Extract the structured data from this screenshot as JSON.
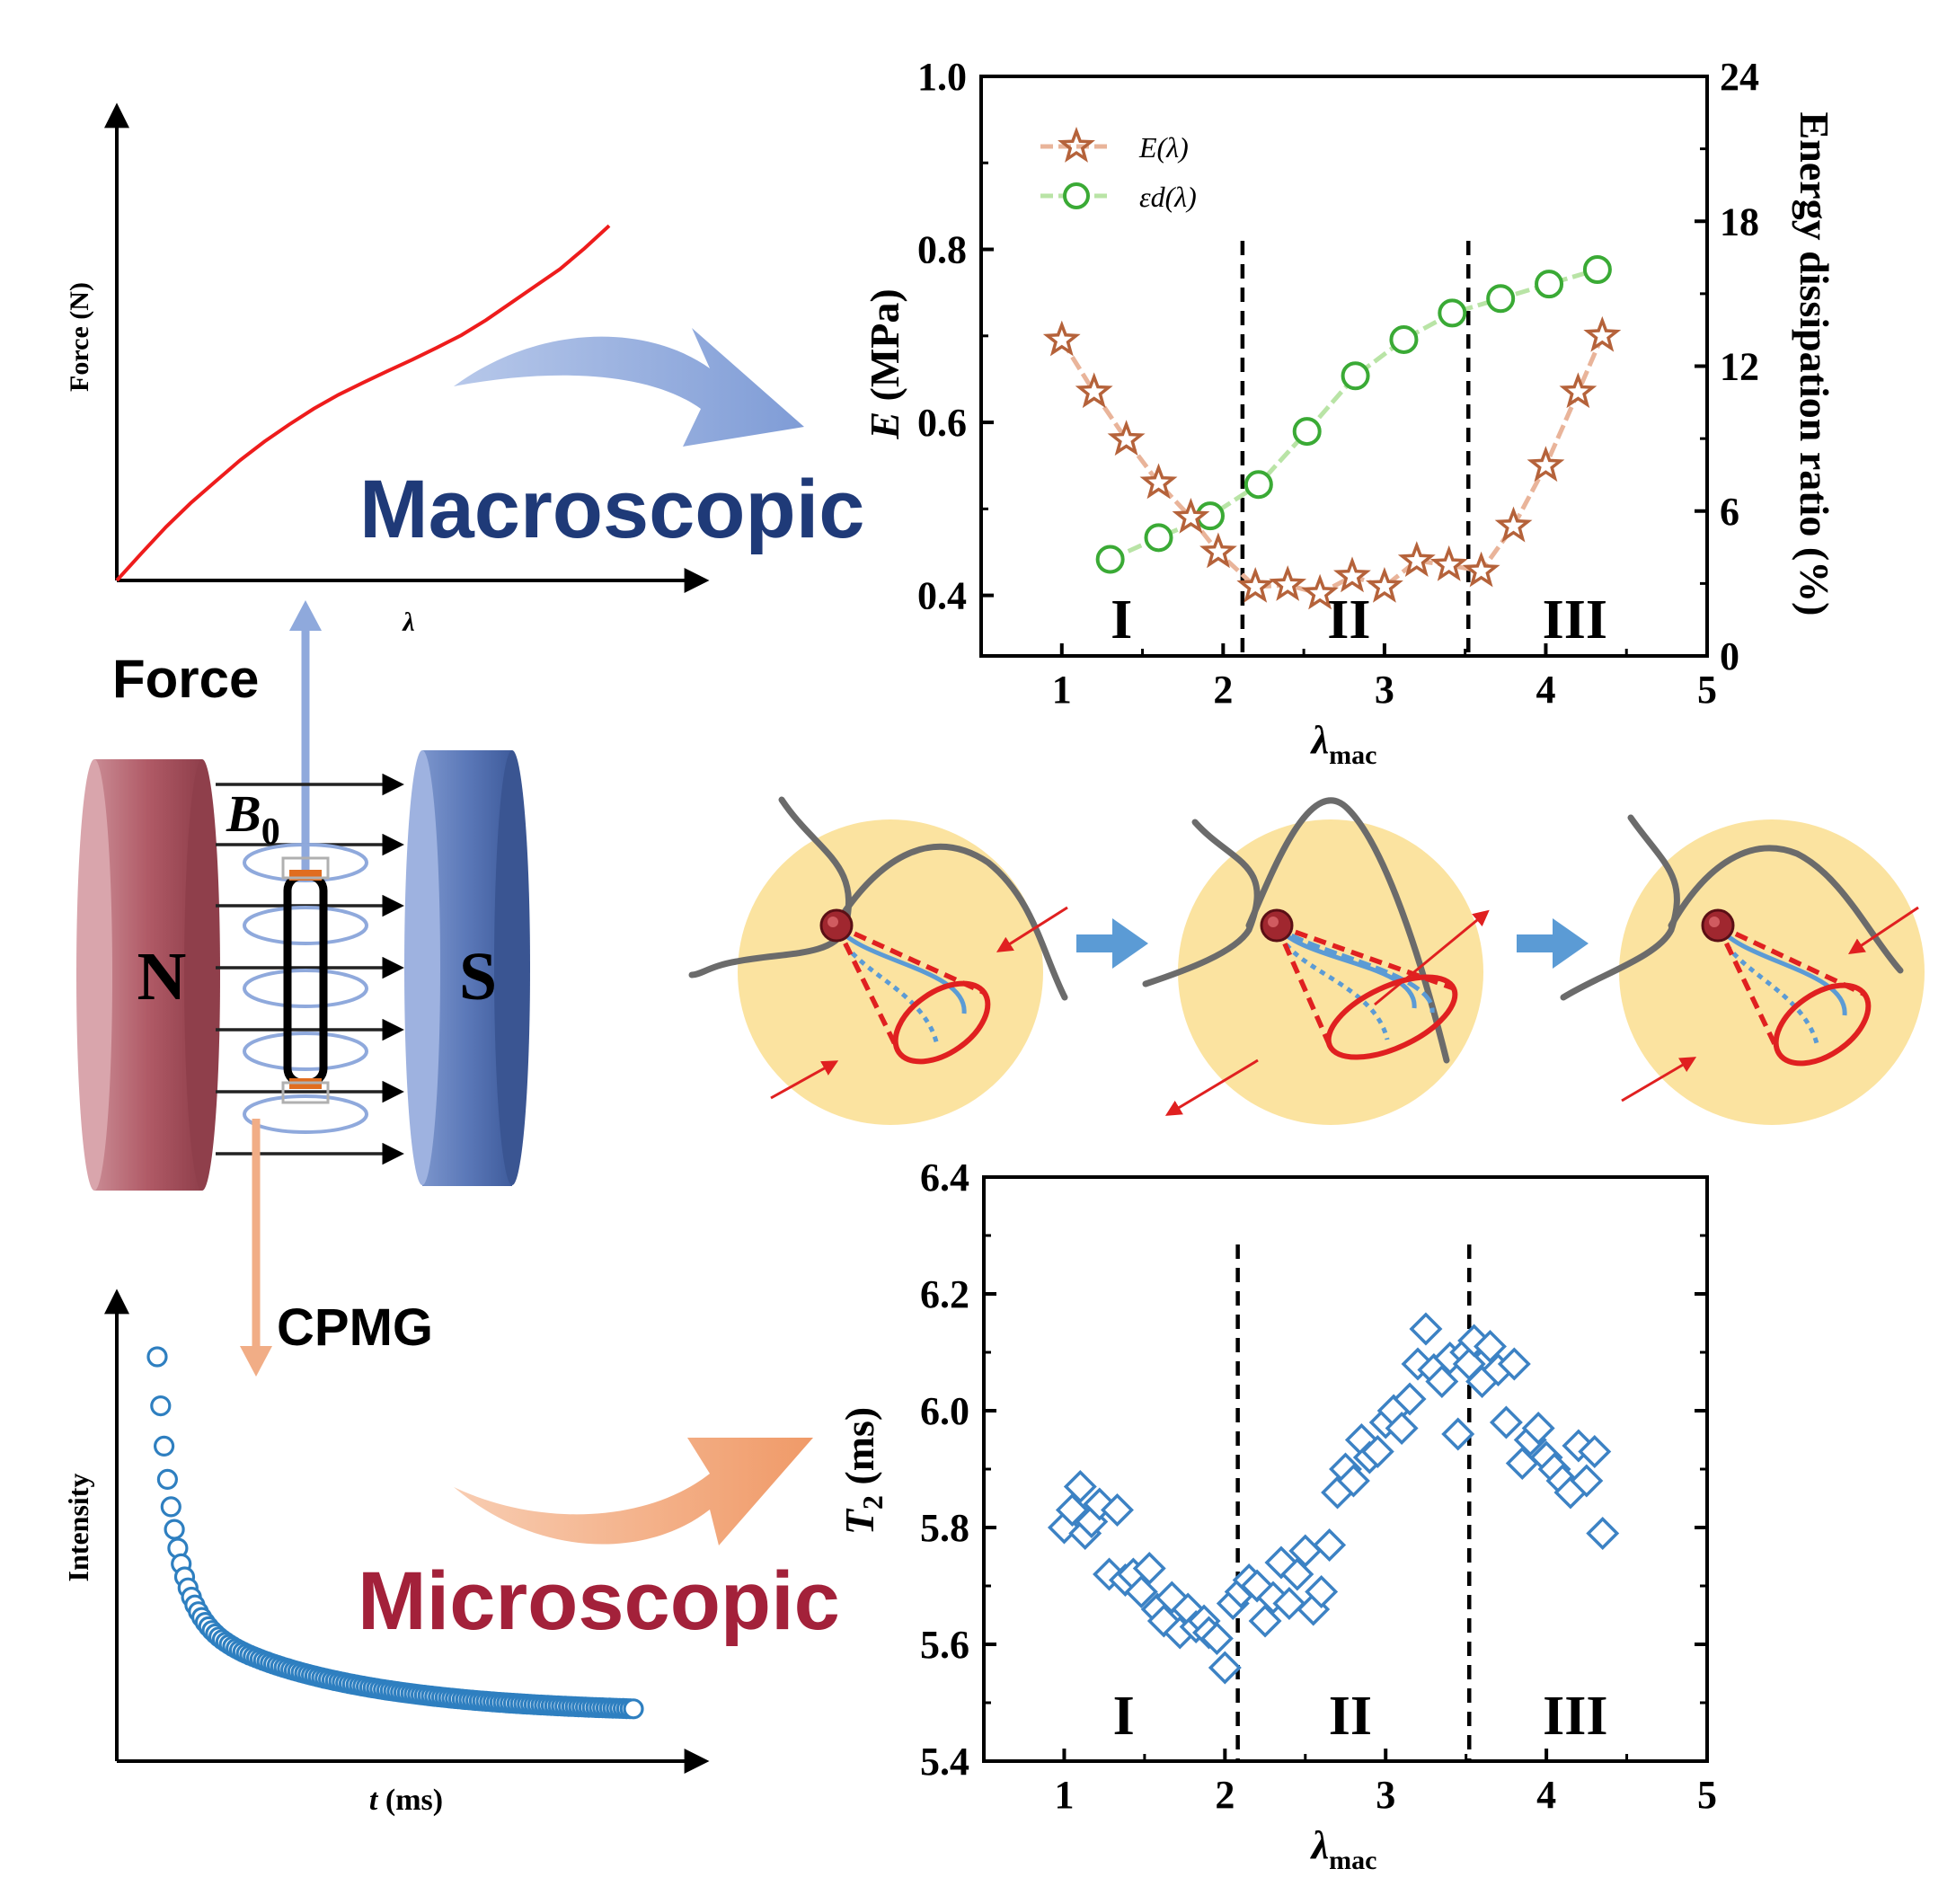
{
  "labels": {
    "macroscopic": "Macroscopic",
    "microscopic": "Microscopic",
    "force": "Force",
    "cpmg": "CPMG",
    "b0": "B",
    "b0_sub": "0",
    "magnet_n": "N",
    "magnet_s": "S"
  },
  "colors": {
    "macro_text": "#1f3a78",
    "micro_text": "#a3213a",
    "force_arrow": "#8fa9dc",
    "cpmg_arrow": "#f1ad86",
    "magnet_n": "#b05a66",
    "magnet_s": "#5b78b8",
    "circle_fill": "#fbe3a0",
    "red": "#e02020",
    "blue_line": "#5b9bd5",
    "chain": "#6b6b6b",
    "star": "#b5623a",
    "star_line": "#e9b49a",
    "circle_green": "#3aaa35",
    "green_line": "#b9e4a6",
    "diamond": "#3c82c4",
    "decay": "#2e7fc0"
  },
  "chart_data": [
    {
      "id": "force_curve",
      "type": "line",
      "xlabel": "λ",
      "ylabel": "Force (N)",
      "series": [
        {
          "x": [
            0,
            0.05,
            0.1,
            0.15,
            0.2,
            0.25,
            0.3,
            0.35,
            0.4,
            0.45,
            0.5,
            0.55,
            0.6,
            0.65,
            0.7,
            0.75,
            0.8,
            0.85,
            0.9,
            0.95,
            1.0
          ],
          "y": [
            0,
            0.072,
            0.142,
            0.205,
            0.262,
            0.318,
            0.368,
            0.413,
            0.455,
            0.492,
            0.524,
            0.555,
            0.585,
            0.617,
            0.65,
            0.69,
            0.735,
            0.78,
            0.825,
            0.88,
            0.94
          ]
        }
      ]
    },
    {
      "id": "modulus_chart",
      "type": "line",
      "xlabel": "λ",
      "xlabel_sub": "mac",
      "ylabel": "E (MPa)",
      "y2label": "Energy dissipation ratio (%)",
      "xlim": [
        0.5,
        5
      ],
      "ylim": [
        0.33,
        1.0
      ],
      "y2lim": [
        0,
        24
      ],
      "xticks": [
        "1",
        "2",
        "3",
        "4",
        "5"
      ],
      "yticks": [
        "0.4",
        "0.6",
        "0.8",
        "1.0"
      ],
      "y2ticks": [
        "0",
        "6",
        "12",
        "18",
        "24"
      ],
      "legend_position": "top-left",
      "region_labels": [
        "I",
        "II",
        "III"
      ],
      "region_label_x": [
        1.37,
        2.78,
        4.18
      ],
      "dividers": [
        2.12,
        3.52
      ],
      "series": [
        {
          "name": "E(λ)",
          "axis": "left",
          "marker": "star",
          "x": [
            1.0,
            1.2,
            1.4,
            1.6,
            1.8,
            1.97,
            2.2,
            2.4,
            2.6,
            2.8,
            3.0,
            3.2,
            3.4,
            3.6,
            3.8,
            4.0,
            4.2,
            4.35
          ],
          "y": [
            0.695,
            0.635,
            0.58,
            0.53,
            0.49,
            0.45,
            0.41,
            0.412,
            0.402,
            0.422,
            0.41,
            0.44,
            0.435,
            0.428,
            0.48,
            0.55,
            0.635,
            0.7
          ]
        },
        {
          "name": "εd(λ)",
          "axis": "right",
          "marker": "circle",
          "x": [
            1.3,
            1.6,
            1.92,
            2.22,
            2.52,
            2.82,
            3.12,
            3.42,
            3.72,
            4.02,
            4.32
          ],
          "y": [
            4.0,
            4.9,
            5.8,
            7.1,
            9.3,
            11.6,
            13.1,
            14.2,
            14.8,
            15.4,
            16.0
          ]
        }
      ]
    },
    {
      "id": "t2_chart",
      "type": "scatter",
      "xlabel": "λ",
      "xlabel_sub": "mac",
      "ylabel": "T2 (ms)",
      "xlim": [
        0.5,
        5
      ],
      "ylim": [
        5.4,
        6.4
      ],
      "xticks": [
        "1",
        "2",
        "3",
        "4",
        "5"
      ],
      "yticks": [
        "5.4",
        "5.6",
        "5.8",
        "6.0",
        "6.2",
        "6.4"
      ],
      "region_labels": [
        "I",
        "II",
        "III"
      ],
      "region_label_x": [
        1.37,
        2.78,
        4.18
      ],
      "dividers": [
        2.08,
        3.52
      ],
      "series": [
        {
          "name": "T2",
          "marker": "diamond",
          "x": [
            1.0,
            1.05,
            1.1,
            1.13,
            1.17,
            1.22,
            1.28,
            1.33,
            1.38,
            1.43,
            1.48,
            1.53,
            1.58,
            1.62,
            1.67,
            1.72,
            1.77,
            1.82,
            1.87,
            1.9,
            1.95,
            2.0,
            2.05,
            2.1,
            2.15,
            2.2,
            2.25,
            2.3,
            2.35,
            2.4,
            2.45,
            2.5,
            2.55,
            2.6,
            2.65,
            2.7,
            2.75,
            2.8,
            2.85,
            2.9,
            2.95,
            3.0,
            3.05,
            3.1,
            3.15,
            3.2,
            3.25,
            3.3,
            3.35,
            3.4,
            3.45,
            3.5,
            3.52,
            3.55,
            3.6,
            3.65,
            3.7,
            3.75,
            3.8,
            3.85,
            3.9,
            3.95,
            4.0,
            4.05,
            4.1,
            4.15,
            4.2,
            4.25,
            4.3,
            4.35
          ],
          "y": [
            5.8,
            5.83,
            5.87,
            5.79,
            5.81,
            5.84,
            5.72,
            5.83,
            5.71,
            5.72,
            5.69,
            5.73,
            5.66,
            5.64,
            5.68,
            5.62,
            5.66,
            5.63,
            5.64,
            5.62,
            5.61,
            5.56,
            5.67,
            5.69,
            5.71,
            5.7,
            5.64,
            5.68,
            5.74,
            5.67,
            5.72,
            5.76,
            5.66,
            5.69,
            5.77,
            5.86,
            5.9,
            5.88,
            5.95,
            5.92,
            5.93,
            5.98,
            6.0,
            5.97,
            6.02,
            6.08,
            6.14,
            6.07,
            6.05,
            6.09,
            5.96,
            6.1,
            6.08,
            6.12,
            6.05,
            6.11,
            6.07,
            5.98,
            6.08,
            5.91,
            5.95,
            5.97,
            5.92,
            5.9,
            5.88,
            5.86,
            5.94,
            5.88,
            5.93,
            5.79
          ]
        }
      ]
    },
    {
      "id": "decay_curve",
      "type": "scatter",
      "xlabel": "t (ms)",
      "ylabel": "Intensity",
      "series": [
        {
          "marker": "circle",
          "tau1": 0.035,
          "tau2": 0.32,
          "a1": 0.62,
          "a2": 0.26,
          "baseline": 0.04,
          "npoints": 140
        }
      ]
    }
  ]
}
